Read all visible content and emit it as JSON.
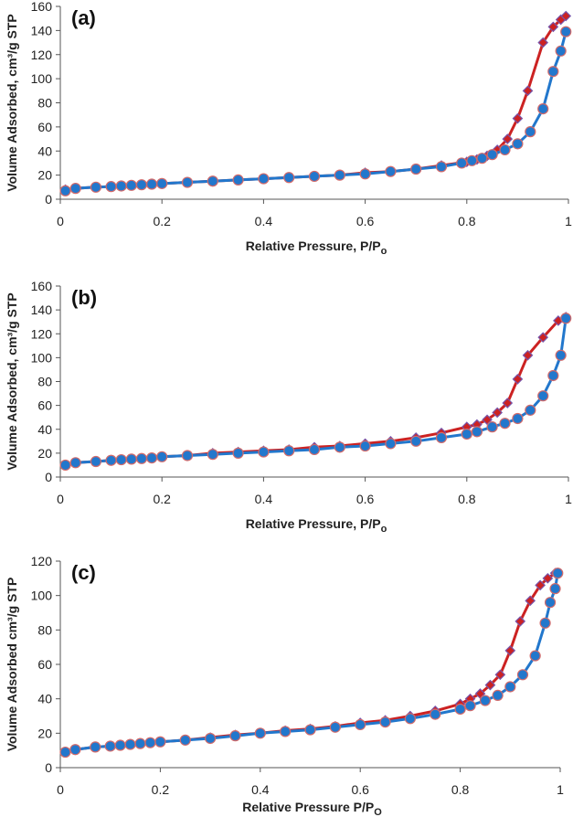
{
  "chart_data": [
    {
      "type": "line",
      "panel_label": "(a)",
      "xlabel": "Relative Pressure, P/P",
      "xlabel_sub": "o",
      "ylabel": "Volume Adsorbed, cm³/g STP",
      "xlim": [
        0,
        1
      ],
      "ylim": [
        0,
        160
      ],
      "xticks": [
        "0",
        "0.2",
        "0.4",
        "0.6",
        "0.8",
        "1"
      ],
      "yticks": [
        "0",
        "20",
        "40",
        "60",
        "80",
        "100",
        "120",
        "140",
        "160"
      ],
      "grid": false,
      "series": [
        {
          "color": "#cc2222",
          "marker": "diamond",
          "x": [
            0.01,
            0.03,
            0.07,
            0.1,
            0.12,
            0.14,
            0.16,
            0.18,
            0.2,
            0.25,
            0.3,
            0.35,
            0.4,
            0.45,
            0.5,
            0.55,
            0.6,
            0.65,
            0.7,
            0.75,
            0.8,
            0.82,
            0.84,
            0.86,
            0.88,
            0.9,
            0.92,
            0.95,
            0.97,
            0.985,
            0.995
          ],
          "y": [
            8,
            9,
            10,
            10.5,
            11,
            11.5,
            12,
            12.5,
            13,
            14,
            15,
            16,
            17,
            18,
            19,
            20,
            22,
            23,
            25,
            28,
            31,
            33,
            36,
            41,
            50,
            67,
            90,
            130,
            143,
            149,
            152
          ]
        },
        {
          "color": "#2277cc",
          "marker": "circle",
          "x": [
            0.01,
            0.03,
            0.07,
            0.1,
            0.12,
            0.14,
            0.16,
            0.18,
            0.2,
            0.25,
            0.3,
            0.35,
            0.4,
            0.45,
            0.5,
            0.55,
            0.6,
            0.65,
            0.7,
            0.75,
            0.79,
            0.81,
            0.83,
            0.85,
            0.875,
            0.9,
            0.925,
            0.95,
            0.97,
            0.985,
            0.995
          ],
          "y": [
            7,
            9,
            10,
            10.5,
            11,
            11.5,
            12,
            12.5,
            13,
            14,
            15,
            16,
            17,
            18,
            19,
            20,
            21,
            23,
            25,
            27,
            30,
            32,
            34,
            37,
            41,
            46,
            56,
            75,
            106,
            123,
            139
          ]
        }
      ]
    },
    {
      "type": "line",
      "panel_label": "(b)",
      "xlabel": "Relative Pressure, P/P",
      "xlabel_sub": "o",
      "ylabel": "Volume Adsorbed, cm³/g STP",
      "xlim": [
        0,
        1
      ],
      "ylim": [
        0,
        160
      ],
      "xticks": [
        "0",
        "0.2",
        "0.4",
        "0.6",
        "0.8",
        "1"
      ],
      "yticks": [
        "0",
        "20",
        "40",
        "60",
        "80",
        "100",
        "120",
        "140",
        "160"
      ],
      "grid": false,
      "series": [
        {
          "color": "#cc2222",
          "marker": "diamond",
          "x": [
            0.01,
            0.03,
            0.07,
            0.1,
            0.12,
            0.14,
            0.16,
            0.18,
            0.2,
            0.25,
            0.3,
            0.35,
            0.4,
            0.45,
            0.5,
            0.55,
            0.6,
            0.65,
            0.7,
            0.75,
            0.8,
            0.82,
            0.84,
            0.86,
            0.88,
            0.9,
            0.92,
            0.95,
            0.98,
            0.995
          ],
          "y": [
            10,
            12,
            13,
            14,
            14.5,
            15,
            15.5,
            16,
            17,
            18,
            20,
            21,
            22,
            23,
            25,
            26,
            28,
            30,
            33,
            37,
            42,
            44,
            48,
            54,
            62,
            82,
            102,
            117,
            131,
            134
          ]
        },
        {
          "color": "#2277cc",
          "marker": "circle",
          "x": [
            0.01,
            0.03,
            0.07,
            0.1,
            0.12,
            0.14,
            0.16,
            0.18,
            0.2,
            0.25,
            0.3,
            0.35,
            0.4,
            0.45,
            0.5,
            0.55,
            0.6,
            0.65,
            0.7,
            0.75,
            0.8,
            0.82,
            0.85,
            0.875,
            0.9,
            0.925,
            0.95,
            0.97,
            0.985,
            0.995
          ],
          "y": [
            10,
            12,
            13,
            14,
            14.5,
            15,
            15.5,
            16,
            17,
            18,
            19,
            20,
            21,
            22,
            23,
            25,
            26,
            28,
            30,
            33,
            36,
            38,
            42,
            45,
            49,
            56,
            68,
            85,
            102,
            133
          ]
        }
      ]
    },
    {
      "type": "line",
      "panel_label": "(c)",
      "xlabel": "Relative Pressure P/P",
      "xlabel_sub": "O",
      "ylabel": "Volume Adsorbed cm³/g STP",
      "xlim": [
        0,
        1
      ],
      "ylim": [
        0,
        120
      ],
      "xticks": [
        "0",
        "0.2",
        "0.4",
        "0.6",
        "0.8",
        "1"
      ],
      "yticks": [
        "0",
        "20",
        "40",
        "60",
        "80",
        "100",
        "120"
      ],
      "grid": false,
      "series": [
        {
          "color": "#cc2222",
          "marker": "diamond",
          "x": [
            0.01,
            0.03,
            0.07,
            0.1,
            0.12,
            0.14,
            0.16,
            0.18,
            0.2,
            0.25,
            0.3,
            0.35,
            0.4,
            0.45,
            0.5,
            0.55,
            0.6,
            0.65,
            0.7,
            0.75,
            0.8,
            0.82,
            0.84,
            0.86,
            0.88,
            0.9,
            0.92,
            0.94,
            0.96,
            0.975,
            0.99
          ],
          "y": [
            9,
            10.5,
            12,
            12.5,
            13,
            13.5,
            14,
            14.5,
            15,
            16,
            17.5,
            19,
            20,
            21.5,
            22.5,
            24,
            26,
            27.5,
            30,
            33,
            37,
            40,
            43,
            48,
            54,
            68,
            85,
            97,
            106,
            110,
            113
          ]
        },
        {
          "color": "#2277cc",
          "marker": "circle",
          "x": [
            0.01,
            0.03,
            0.07,
            0.1,
            0.12,
            0.14,
            0.16,
            0.18,
            0.2,
            0.25,
            0.3,
            0.35,
            0.4,
            0.45,
            0.5,
            0.55,
            0.6,
            0.65,
            0.7,
            0.75,
            0.8,
            0.82,
            0.85,
            0.875,
            0.9,
            0.925,
            0.95,
            0.97,
            0.98,
            0.99,
            0.995
          ],
          "y": [
            9,
            10.5,
            12,
            12.5,
            13,
            13.5,
            14,
            14.5,
            15,
            16,
            17,
            18.5,
            20,
            21,
            22,
            23.5,
            25,
            26.5,
            28.5,
            31,
            34,
            36,
            39,
            42,
            47,
            54,
            65,
            84,
            96,
            104,
            113
          ]
        }
      ]
    }
  ]
}
